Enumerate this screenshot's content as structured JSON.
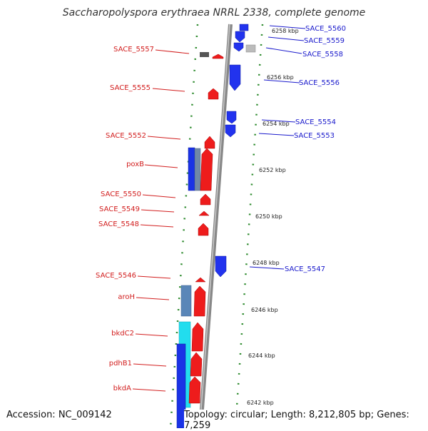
{
  "title": "Saccharopolyspora erythraea NRRL 2338, complete genome",
  "footer": {
    "accession": "Accession: NC_009142",
    "summary": "Topology: circular; Length: 8,212,805 bp; Genes: 7,259"
  },
  "colors": {
    "forward_gene": "#ee1c1c",
    "reverse_gene": "#1a33e6",
    "forward_label": "#d21e1e",
    "reverse_label": "#1a1acc",
    "backbone": "#999999",
    "tick": "#2e8b2e"
  },
  "kbp_ticks": [
    "6258 kbp",
    "6256 kbp",
    "6254 kbp",
    "6252 kbp",
    "6250 kbp",
    "6248 kbp",
    "6246 kbp",
    "6244 kbp",
    "6242 kbp"
  ],
  "left_genes": [
    "SACE_5557",
    "SACE_5555",
    "SACE_5552",
    "poxB",
    "SACE_5550",
    "SACE_5549",
    "SACE_5548",
    "SACE_5546",
    "aroH",
    "bkdC2",
    "pdhB1",
    "bkdA"
  ],
  "right_genes": [
    "SACE_5560",
    "SACE_5559",
    "SACE_5558",
    "SACE_5556",
    "SACE_5554",
    "SACE_5553",
    "SACE_5547"
  ]
}
